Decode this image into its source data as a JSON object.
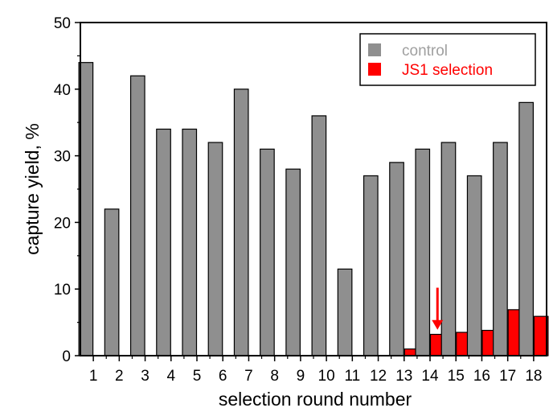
{
  "chart_data": {
    "type": "bar",
    "xlabel": "selection round number",
    "ylabel": "capture yield, %",
    "ylim": [
      0,
      50
    ],
    "yticks": [
      0,
      10,
      20,
      30,
      40,
      50
    ],
    "categories": [
      "1",
      "2",
      "3",
      "4",
      "5",
      "6",
      "7",
      "8",
      "9",
      "10",
      "11",
      "12",
      "13",
      "14",
      "15",
      "16",
      "17",
      "18"
    ],
    "series": [
      {
        "name": "control",
        "color": "#8f8f8f",
        "label_color": "#a0a0a0",
        "values": [
          44,
          22,
          42,
          34,
          34,
          32,
          40,
          31,
          28,
          36,
          13,
          27,
          29,
          31,
          32,
          27,
          32,
          38
        ]
      },
      {
        "name": "JS1 selection",
        "color": "#ff0000",
        "label_color": "#ff0000",
        "values": [
          0,
          0,
          0,
          0,
          0,
          0,
          0,
          0,
          0,
          0,
          0,
          0,
          1,
          3.2,
          3.5,
          3.8,
          6.9,
          5.9
        ]
      }
    ],
    "annotations": [
      {
        "type": "arrow",
        "category": "14",
        "color": "#ff0000",
        "y_from": 10.2,
        "y_to": 3.9
      }
    ],
    "legend": {
      "position": "top-right"
    },
    "grid": false
  }
}
